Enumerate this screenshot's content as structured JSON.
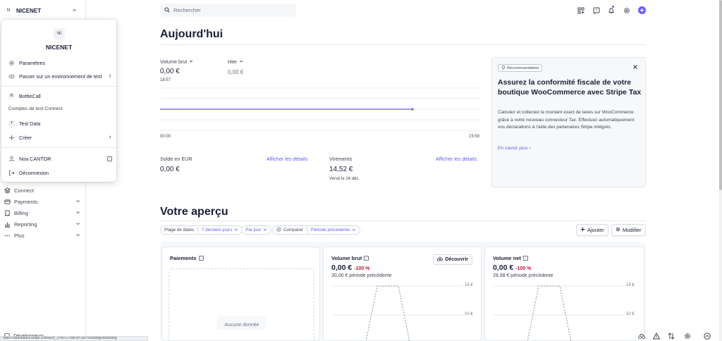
{
  "account": {
    "initial": "N",
    "name": "NICENET"
  },
  "menu": {
    "logo_initials": "NI",
    "title": "NICENET",
    "items": [
      {
        "label": "Paramètres",
        "icon": "gear-icon"
      },
      {
        "label": "Passer sur un environnement de test",
        "icon": "test-env-icon"
      }
    ],
    "accounts": [
      {
        "initial": "B",
        "label": "BottleCall"
      }
    ],
    "test_section": "Comptes de test Connect",
    "test_accounts": [
      {
        "initial": "T",
        "label": "Test Data"
      }
    ],
    "create_label": "Créer",
    "user_name": "Noa CANTOR",
    "logout_label": "Déconnexion"
  },
  "sidebar": {
    "items": [
      {
        "label": "Connect",
        "icon": "connect-icon",
        "has_chevron": false
      },
      {
        "label": "Payments",
        "icon": "payments-icon",
        "has_chevron": true
      },
      {
        "label": "Billing",
        "icon": "billing-icon",
        "has_chevron": true
      },
      {
        "label": "Reporting",
        "icon": "reporting-icon",
        "has_chevron": true
      },
      {
        "label": "Plus",
        "icon": "more-icon",
        "has_chevron": true
      }
    ],
    "developers_label": "Développeurs"
  },
  "status_url": "https://dashboard.stripe.com/acct_1P6v1J7MK9tY3kTh/settings/branding",
  "search": {
    "placeholder": "Rechercher"
  },
  "today": {
    "heading": "Aujourd'hui",
    "gross_label": "Volume brut",
    "gross_value": "0,00 €",
    "gross_time": "18:57",
    "yesterday_label": "Hier",
    "yesterday_value": "0,00 €",
    "axis_start": "00:00",
    "axis_end": "23:59",
    "balance_label": "Solde en EUR",
    "balance_value": "0,00 €",
    "balance_link": "Afficher les détails",
    "payouts_label": "Virements",
    "payouts_value": "14,52 €",
    "payouts_note": "Versé le 24 déc.",
    "payouts_link": "Afficher les détails"
  },
  "recommendation": {
    "tag": "Recommandation",
    "title": "Assurez la conformité fiscale de votre boutique WooCommerce avec Stripe Tax",
    "body": "Calculez et collectez le montant exact de taxes sur WooCommerce grâce à notre nouveau connecteur Tax. Effectuez automatiquement vos déclarations à l'aide des partenaires Stripe intégrés.",
    "link": "En savoir plus"
  },
  "overview": {
    "heading": "Votre aperçu",
    "date_range_label": "Plage de dates",
    "date_range_value": "7 derniers jours",
    "interval_value": "Par jour",
    "compare_label": "Comparer",
    "compare_value": "Période précédente",
    "add_label": "Ajouter",
    "edit_label": "Modifier",
    "discover_label": "Découvrir",
    "cards": [
      {
        "title": "Paiements",
        "empty_text": "Aucune donnée"
      },
      {
        "title": "Volume brut",
        "value": "0,00 €",
        "change": "-100 %",
        "previous": "30,00 € période précédente",
        "ticks": [
          "15 €",
          "10 €"
        ]
      },
      {
        "title": "Volume net",
        "value": "0,00 €",
        "change": "-100 %",
        "previous": "28,98 € période précédente",
        "ticks": [
          "15 €",
          "10 €"
        ]
      }
    ]
  },
  "colors": {
    "accent": "#635bff",
    "negative": "#c0123c",
    "text": "#1a1f36"
  }
}
